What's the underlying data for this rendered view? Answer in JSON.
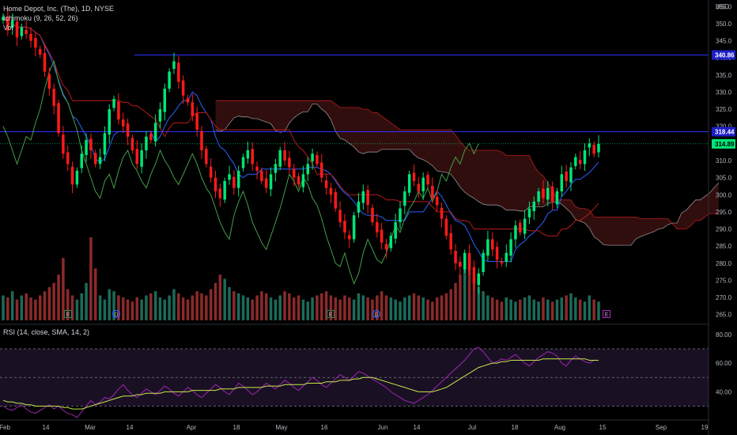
{
  "legend": {
    "symbol": "Home Depot, Inc. (The), 1D, NYSE",
    "ichimoku": "Ichimoku (9, 26, 52, 26)",
    "vol": "Vol",
    "rsi": "RSI (14, close, SMA, 14, 2)"
  },
  "currency": "USD",
  "colors": {
    "up": "#00e676",
    "down": "#ff1a1a",
    "vol_up": "#1b6b5a",
    "vol_down": "#8c2a2a",
    "conversion": "#2962ff",
    "base": "#b71c1c",
    "lagging": "#43a047",
    "cloud_edge": "#c8c8c8",
    "cloud_bear": "#3a1010",
    "cloud_bull": "#0d2a18",
    "hline": "#3030ff",
    "rsi": "#9c27b0",
    "rsi_ma": "#c6e84a"
  },
  "chart_data": [
    {
      "type": "candlestick",
      "title": "",
      "ylabel": "USD",
      "ylim": [
        264,
        356
      ],
      "y_ticks": [
        265,
        270,
        275,
        280,
        285,
        290,
        295,
        300,
        305,
        310,
        315,
        320,
        325,
        330,
        335,
        340,
        345,
        350,
        355
      ],
      "x_ticks": [
        "Feb",
        "14",
        "Mar",
        "14",
        "Apr",
        "18",
        "May",
        "16",
        "Jun",
        "14",
        "Jul",
        "18",
        "Aug",
        "15",
        "Sep",
        "19"
      ],
      "grid": false,
      "horizontal_lines": [
        340.86,
        318.44
      ],
      "price_labels": [
        {
          "value": 340.86,
          "text": "340.86"
        },
        {
          "value": 318.44,
          "text": "318.44"
        },
        {
          "value": 314.89,
          "text": "314.89"
        }
      ],
      "last_close": 314.89,
      "event_markers": [
        "E",
        "D",
        "E",
        "D",
        "E"
      ],
      "closes": [
        352,
        348,
        351,
        346,
        349,
        347,
        345,
        343,
        341,
        336,
        331,
        326,
        318,
        312,
        309,
        303,
        307,
        312,
        316,
        313,
        309,
        311,
        318,
        325,
        328,
        322,
        320,
        317,
        313,
        309,
        313,
        317,
        316,
        321,
        325,
        331,
        336,
        339,
        333,
        329,
        327,
        323,
        319,
        313,
        309,
        305,
        301,
        299,
        304,
        306,
        302,
        307,
        311,
        313,
        309,
        307,
        304,
        302,
        306,
        309,
        313,
        310,
        308,
        305,
        303,
        306,
        309,
        312,
        309,
        305,
        302,
        300,
        296,
        292,
        289,
        287,
        294,
        298,
        301,
        297,
        292,
        289,
        286,
        284,
        288,
        292,
        296,
        301,
        306,
        304,
        301,
        305,
        303,
        299,
        297,
        293,
        288,
        284,
        280,
        279,
        283,
        278,
        274,
        277,
        283,
        287,
        284,
        281,
        280,
        283,
        287,
        291,
        289,
        293,
        296,
        298,
        301,
        299,
        302,
        298,
        301,
        306,
        304,
        308,
        311,
        309,
        313,
        315,
        312,
        314.89
      ],
      "volume": [
        12,
        11,
        14,
        10,
        12,
        13,
        11,
        10,
        12,
        14,
        16,
        18,
        22,
        30,
        15,
        12,
        10,
        13,
        18,
        40,
        25,
        12,
        10,
        15,
        14,
        12,
        11,
        10,
        9,
        11,
        10,
        12,
        13,
        14,
        11,
        10,
        12,
        15,
        13,
        11,
        10,
        12,
        14,
        13,
        12,
        15,
        18,
        22,
        20,
        16,
        14,
        13,
        12,
        11,
        10,
        12,
        14,
        13,
        11,
        10,
        12,
        14,
        13,
        11,
        12,
        10,
        9,
        11,
        12,
        13,
        14,
        12,
        11,
        10,
        12,
        11,
        10,
        13,
        12,
        11,
        10,
        12,
        14,
        12,
        11,
        10,
        9,
        11,
        12,
        13,
        12,
        11,
        10,
        9,
        11,
        12,
        13,
        15,
        18,
        22,
        25,
        28,
        20,
        16,
        14,
        12,
        11,
        10,
        9,
        11,
        10,
        9,
        10,
        11,
        12,
        10,
        9,
        11,
        10,
        9,
        10,
        11,
        12,
        13,
        11,
        10,
        9,
        12,
        10,
        9
      ]
    },
    {
      "type": "line",
      "title": "",
      "ylim": [
        22,
        86
      ],
      "y_ticks": [
        40,
        60,
        80
      ],
      "bands": [
        30,
        50,
        70
      ],
      "series": [
        {
          "values": [
            30,
            28,
            27,
            29,
            31,
            28,
            26,
            25,
            27,
            29,
            31,
            28,
            30,
            27,
            25,
            24,
            22,
            26,
            30,
            34,
            31,
            33,
            36,
            35,
            38,
            42,
            45,
            41,
            38,
            36,
            39,
            42,
            40,
            38,
            41,
            44,
            42,
            39,
            37,
            40,
            43,
            41,
            38,
            36,
            39,
            42,
            45,
            43,
            40,
            38,
            42,
            46,
            44,
            41,
            38,
            40,
            43,
            46,
            44,
            42,
            45,
            48,
            46,
            43,
            41,
            44,
            47,
            50,
            48,
            45,
            43,
            46,
            49,
            52,
            50,
            48,
            51,
            54,
            53,
            51,
            49,
            47,
            45,
            43,
            40,
            38,
            36,
            34,
            33,
            32,
            34,
            36,
            38,
            41,
            44,
            47,
            50,
            53,
            56,
            59,
            62,
            66,
            70,
            71,
            68,
            64,
            60,
            61,
            63,
            62,
            64,
            66,
            63,
            60,
            58,
            61,
            64,
            66,
            68,
            67,
            65,
            60,
            58,
            62,
            65,
            63,
            61,
            60,
            62,
            62
          ]
        },
        {
          "values": [
            34,
            33,
            33,
            32,
            32,
            31,
            31,
            30,
            30,
            30,
            30,
            30,
            30,
            29,
            29,
            28,
            28,
            28,
            29,
            30,
            31,
            32,
            33,
            34,
            35,
            36,
            37,
            37,
            37,
            38,
            38,
            39,
            39,
            39,
            39,
            40,
            40,
            40,
            40,
            40,
            40,
            41,
            41,
            41,
            41,
            41,
            41,
            42,
            42,
            42,
            42,
            43,
            43,
            43,
            43,
            43,
            43,
            44,
            44,
            44,
            44,
            45,
            45,
            45,
            45,
            45,
            46,
            46,
            46,
            46,
            47,
            47,
            47,
            48,
            48,
            48,
            49,
            49,
            50,
            50,
            50,
            49,
            48,
            47,
            46,
            45,
            44,
            43,
            42,
            41,
            40,
            40,
            40,
            40,
            41,
            42,
            43,
            45,
            47,
            49,
            51,
            53,
            55,
            57,
            58,
            59,
            60,
            60,
            61,
            61,
            62,
            62,
            62,
            62,
            62,
            62,
            62,
            63,
            63,
            63,
            63,
            63,
            63,
            63,
            63,
            63,
            63,
            62,
            62,
            62
          ]
        }
      ]
    }
  ]
}
